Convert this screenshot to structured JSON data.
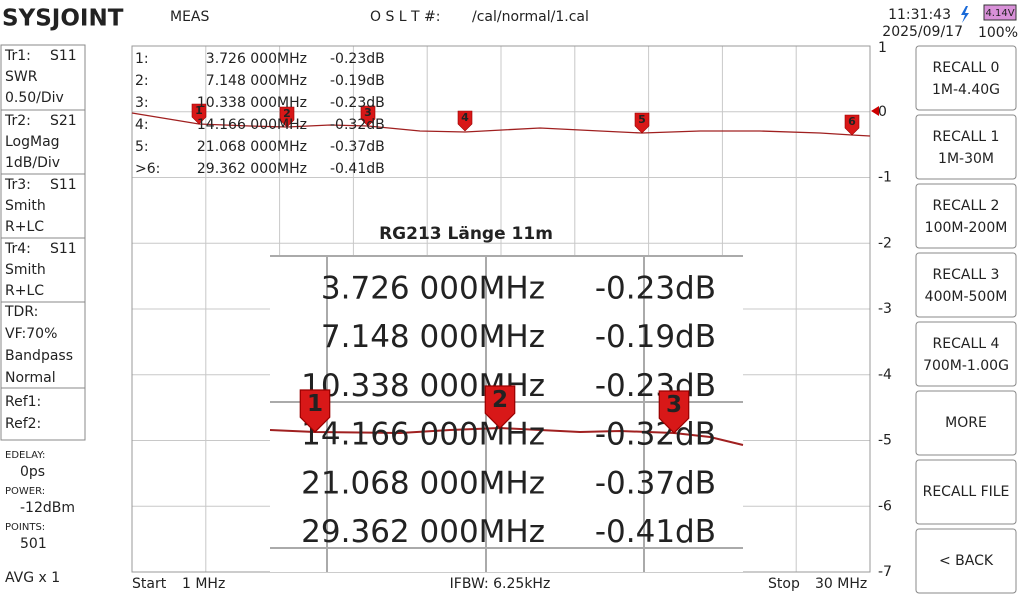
{
  "header": {
    "logo": "SYSJOINT",
    "mode": "MEAS",
    "cal_label": "O S L T #:",
    "cal_file": "/cal/normal/1.cal",
    "time": "11:31:43",
    "date": "2025/09/17",
    "battery_voltage": "4.14V",
    "battery_percent": "100%"
  },
  "traces": [
    {
      "id": "Tr1:",
      "param": "S11",
      "format": "SWR",
      "scale": "0.50/Div"
    },
    {
      "id": "Tr2:",
      "param": "S21",
      "format": "LogMag",
      "scale": "1dB/Div"
    },
    {
      "id": "Tr3:",
      "param": "S11",
      "format": "Smith",
      "scale": "R+LC"
    },
    {
      "id": "Tr4:",
      "param": "S11",
      "format": "Smith",
      "scale": "R+LC"
    }
  ],
  "tdr": [
    "TDR:",
    "VF:70%",
    "Bandpass",
    "Normal"
  ],
  "refs": [
    "Ref1:",
    "Ref2:"
  ],
  "settings": [
    {
      "label": "EDELAY:",
      "value": "0ps"
    },
    {
      "label": "POWER:",
      "value": "-12dBm"
    },
    {
      "label": "POINTS:",
      "value": "501"
    }
  ],
  "averaging": "AVG x 1",
  "markers": [
    {
      "id": "1:",
      "freq": "3.726 000MHz",
      "value": "-0.23dB"
    },
    {
      "id": "2:",
      "freq": "7.148 000MHz",
      "value": "-0.19dB"
    },
    {
      "id": "3:",
      "freq": "10.338 000MHz",
      "value": "-0.23dB"
    },
    {
      "id": "4:",
      "freq": "14.166 000MHz",
      "value": "-0.32dB"
    },
    {
      "id": "5:",
      "freq": "21.068 000MHz",
      "value": "-0.37dB"
    },
    {
      "id": ">6:",
      "freq": "29.362 000MHz",
      "value": "-0.41dB"
    }
  ],
  "marker_flags": [
    "1",
    "2",
    "3",
    "4",
    "5",
    "6"
  ],
  "y_axis_labels": [
    "1",
    "0",
    "-1",
    "-2",
    "-3",
    "-4",
    "-5",
    "-6",
    "-7"
  ],
  "annotation": "RG213 Länge 11m",
  "footer": {
    "start_label": "Start",
    "start": "1 MHz",
    "ifbw": "IFBW: 6.25kHz",
    "stop_label": "Stop",
    "stop": "30 MHz"
  },
  "buttons": [
    {
      "label": "RECALL 0",
      "sub": "1M-4.40G"
    },
    {
      "label": "RECALL 1",
      "sub": "1M-30M"
    },
    {
      "label": "RECALL 2",
      "sub": "100M-200M"
    },
    {
      "label": "RECALL 3",
      "sub": "400M-500M"
    },
    {
      "label": "RECALL 4",
      "sub": "700M-1.00G"
    },
    {
      "label": "MORE"
    },
    {
      "label": "RECALL FILE"
    },
    {
      "label": "< BACK"
    }
  ]
}
